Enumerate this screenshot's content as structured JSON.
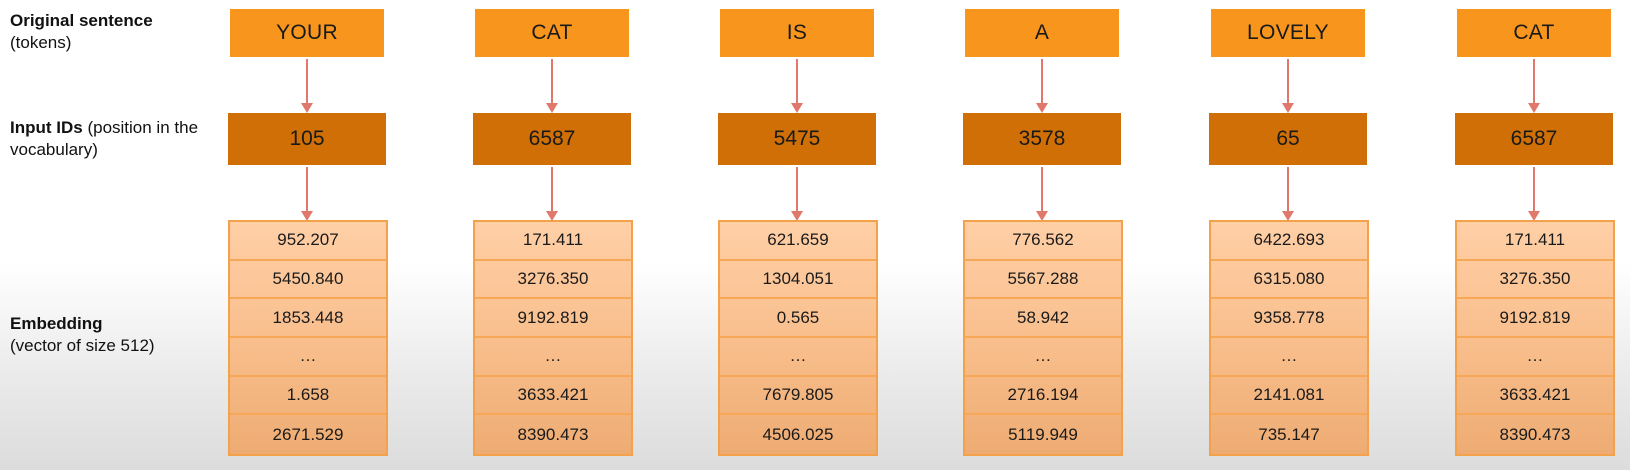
{
  "labels": {
    "tokens_title": "Original sentence",
    "tokens_sub": "(tokens)",
    "ids_title": "Input IDs",
    "ids_sub": "(position in the vocabulary)",
    "emb_title": "Embedding",
    "emb_sub": "(vector of size 512)"
  },
  "columns": [
    {
      "token": "YOUR",
      "id": "105",
      "embedding": [
        "952.207",
        "5450.840",
        "1853.448",
        "…",
        "1.658",
        "2671.529"
      ]
    },
    {
      "token": "CAT",
      "id": "6587",
      "embedding": [
        "171.411",
        "3276.350",
        "9192.819",
        "…",
        "3633.421",
        "8390.473"
      ]
    },
    {
      "token": "IS",
      "id": "5475",
      "embedding": [
        "621.659",
        "1304.051",
        "0.565",
        "…",
        "7679.805",
        "4506.025"
      ]
    },
    {
      "token": "A",
      "id": "3578",
      "embedding": [
        "776.562",
        "5567.288",
        "58.942",
        "…",
        "2716.194",
        "5119.949"
      ]
    },
    {
      "token": "LOVELY",
      "id": "65",
      "embedding": [
        "6422.693",
        "6315.080",
        "9358.778",
        "…",
        "2141.081",
        "735.147"
      ]
    },
    {
      "token": "CAT",
      "id": "6587",
      "embedding": [
        "171.411",
        "3276.350",
        "9192.819",
        "…",
        "3633.421",
        "8390.473"
      ]
    }
  ],
  "colors": {
    "token_box": "#f7951d",
    "id_box": "#cf6f06",
    "embedding_box": "#f9bf8d",
    "arrow": "#e0786b"
  }
}
